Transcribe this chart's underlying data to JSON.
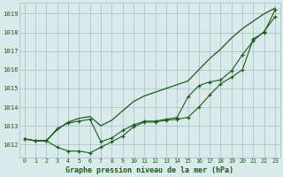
{
  "x": [
    0,
    1,
    2,
    3,
    4,
    5,
    6,
    7,
    8,
    9,
    10,
    11,
    12,
    13,
    14,
    15,
    16,
    17,
    18,
    19,
    20,
    21,
    22,
    23
  ],
  "line_smooth": [
    1012.3,
    1012.2,
    1012.2,
    1012.8,
    1013.2,
    1013.4,
    1013.5,
    1013.0,
    1013.3,
    1013.8,
    1014.3,
    1014.6,
    1014.8,
    1015.0,
    1015.2,
    1015.4,
    1016.0,
    1016.6,
    1017.1,
    1017.7,
    1018.2,
    1018.6,
    1019.0,
    1019.3
  ],
  "line_marker1": [
    1012.3,
    1012.2,
    1012.2,
    1011.85,
    1011.65,
    1011.65,
    1011.55,
    1011.85,
    1012.15,
    1012.45,
    1012.95,
    1013.2,
    1013.2,
    1013.3,
    1013.35,
    1013.45,
    1014.0,
    1014.65,
    1015.25,
    1015.6,
    1016.0,
    1017.65,
    1018.0,
    1019.2
  ],
  "line_marker2": [
    1012.3,
    1012.2,
    1012.2,
    1012.85,
    1013.15,
    1013.25,
    1013.35,
    1012.15,
    1012.35,
    1012.75,
    1013.05,
    1013.25,
    1013.25,
    1013.35,
    1013.45,
    1014.55,
    1015.15,
    1015.35,
    1015.45,
    1015.95,
    1016.8,
    1017.55,
    1018.05,
    1018.85
  ],
  "bg_color": "#daeaea",
  "grid_color": "#b0cccc",
  "line_color": "#1a5c1a",
  "xlabel": "Graphe pression niveau de la mer (hPa)",
  "ylim_min": 1011.3,
  "ylim_max": 1019.6,
  "xlim_min": -0.5,
  "xlim_max": 23.5,
  "yticks": [
    1012,
    1013,
    1014,
    1015,
    1016,
    1017,
    1018,
    1019
  ]
}
